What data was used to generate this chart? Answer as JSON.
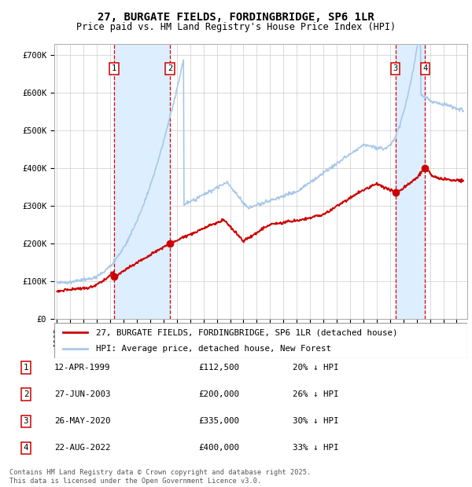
{
  "title": "27, BURGATE FIELDS, FORDINGBRIDGE, SP6 1LR",
  "subtitle": "Price paid vs. HM Land Registry's House Price Index (HPI)",
  "ylim": [
    0,
    730000
  ],
  "xlim": [
    1994.8,
    2025.8
  ],
  "yticks": [
    0,
    100000,
    200000,
    300000,
    400000,
    500000,
    600000,
    700000
  ],
  "ytick_labels": [
    "£0",
    "£100K",
    "£200K",
    "£300K",
    "£400K",
    "£500K",
    "£600K",
    "£700K"
  ],
  "background_color": "#ffffff",
  "plot_bg_color": "#ffffff",
  "grid_color": "#cccccc",
  "hpi_line_color": "#a8c8e8",
  "price_line_color": "#cc0000",
  "sale_marker_color": "#cc0000",
  "vline_color": "#dd0000",
  "shade_color": "#ddeeff",
  "legend_items": [
    {
      "label": "27, BURGATE FIELDS, FORDINGBRIDGE, SP6 1LR (detached house)",
      "color": "#cc0000"
    },
    {
      "label": "HPI: Average price, detached house, New Forest",
      "color": "#a8c8e8"
    }
  ],
  "sales": [
    {
      "date_num": 1999.28,
      "price": 112500,
      "label": "1"
    },
    {
      "date_num": 2003.49,
      "price": 200000,
      "label": "2"
    },
    {
      "date_num": 2020.4,
      "price": 335000,
      "label": "3"
    },
    {
      "date_num": 2022.64,
      "price": 400000,
      "label": "4"
    }
  ],
  "table_rows": [
    {
      "num": "1",
      "date": "12-APR-1999",
      "price": "£112,500",
      "pct": "20% ↓ HPI"
    },
    {
      "num": "2",
      "date": "27-JUN-2003",
      "price": "£200,000",
      "pct": "26% ↓ HPI"
    },
    {
      "num": "3",
      "date": "26-MAY-2020",
      "price": "£335,000",
      "pct": "30% ↓ HPI"
    },
    {
      "num": "4",
      "date": "22-AUG-2022",
      "price": "£400,000",
      "pct": "33% ↓ HPI"
    }
  ],
  "footnote": "Contains HM Land Registry data © Crown copyright and database right 2025.\nThis data is licensed under the Open Government Licence v3.0.",
  "title_fontsize": 10,
  "subtitle_fontsize": 8.5,
  "tick_fontsize": 7.5
}
